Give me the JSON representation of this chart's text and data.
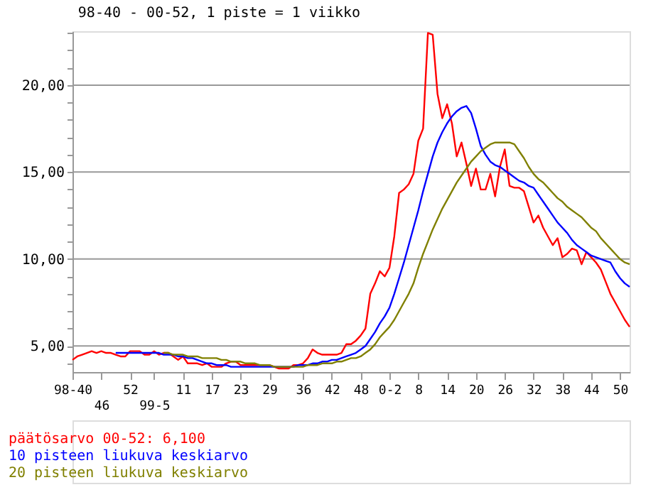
{
  "chart_data": {
    "type": "line",
    "title": "98-40 - 00-52, 1 piste = 1 viikko",
    "categories": [
      "98-40",
      null,
      null,
      null,
      null,
      null,
      "46",
      null,
      null,
      null,
      null,
      null,
      "52",
      null,
      null,
      null,
      null,
      "99-5",
      null,
      null,
      null,
      null,
      null,
      "11",
      null,
      null,
      null,
      null,
      null,
      "17",
      null,
      null,
      null,
      null,
      null,
      "23",
      null,
      null,
      null,
      null,
      null,
      "29",
      null,
      null,
      null,
      null,
      null,
      null,
      "36",
      null,
      null,
      null,
      null,
      null,
      "42",
      null,
      null,
      null,
      null,
      null,
      "48",
      null,
      null,
      null,
      null,
      null,
      "0-2",
      null,
      null,
      null,
      null,
      null,
      "8",
      null,
      null,
      null,
      null,
      null,
      "14",
      null,
      null,
      null,
      null,
      null,
      "20",
      null,
      null,
      null,
      null,
      null,
      "26",
      null,
      null,
      null,
      null,
      null,
      "32",
      null,
      null,
      null,
      null,
      null,
      "38",
      null,
      null,
      null,
      null,
      null,
      "44",
      null,
      null,
      null,
      null,
      null,
      "50",
      null,
      null
    ],
    "ylim": [
      3.5,
      23.1
    ],
    "yticks": [
      {
        "value": 4,
        "label": null
      },
      {
        "value": 5,
        "label": "5,00"
      },
      {
        "value": 6,
        "label": null
      },
      {
        "value": 7,
        "label": null
      },
      {
        "value": 8,
        "label": null
      },
      {
        "value": 9,
        "label": null
      },
      {
        "value": 10,
        "label": "10,00"
      },
      {
        "value": 11,
        "label": null
      },
      {
        "value": 12,
        "label": null
      },
      {
        "value": 13,
        "label": null
      },
      {
        "value": 14,
        "label": null
      },
      {
        "value": 15,
        "label": "15,00"
      },
      {
        "value": 16,
        "label": null
      },
      {
        "value": 17,
        "label": null
      },
      {
        "value": 18,
        "label": null
      },
      {
        "value": 19,
        "label": null
      },
      {
        "value": 20,
        "label": "20,00"
      },
      {
        "value": 21,
        "label": null
      },
      {
        "value": 22,
        "label": null
      },
      {
        "value": 23,
        "label": null
      }
    ],
    "grid": "y",
    "legend": "bottom left",
    "marker": "none",
    "line_style": "solid",
    "series": [
      {
        "name": "päätösarvo 00-52:    6,100",
        "color": "#ff0000",
        "values": [
          4.2,
          4.4,
          4.5,
          4.6,
          4.7,
          4.6,
          4.7,
          4.6,
          4.6,
          4.5,
          4.4,
          4.4,
          4.7,
          4.7,
          4.7,
          4.5,
          4.5,
          4.7,
          4.5,
          4.6,
          4.6,
          4.4,
          4.2,
          4.4,
          4.0,
          4.0,
          4.0,
          3.9,
          4.0,
          3.8,
          3.8,
          3.8,
          4.0,
          4.1,
          4.1,
          3.9,
          3.9,
          3.9,
          3.9,
          3.9,
          3.9,
          3.9,
          3.8,
          3.7,
          3.7,
          3.7,
          3.9,
          3.9,
          4.0,
          4.3,
          4.8,
          4.6,
          4.5,
          4.5,
          4.5,
          4.5,
          4.6,
          5.1,
          5.1,
          5.3,
          5.6,
          6.0,
          8.0,
          8.6,
          9.3,
          9.0,
          9.5,
          11.3,
          13.8,
          14.0,
          14.3,
          14.9,
          16.8,
          17.5,
          23.0,
          22.9,
          19.5,
          18.1,
          18.9,
          17.8,
          15.9,
          16.7,
          15.5,
          14.2,
          15.2,
          14.0,
          14.0,
          14.9,
          13.6,
          15.3,
          16.3,
          14.2,
          14.1,
          14.1,
          13.9,
          13.0,
          12.1,
          12.5,
          11.8,
          11.3,
          10.8,
          11.2,
          10.1,
          10.3,
          10.6,
          10.5,
          9.7,
          10.4,
          10.1,
          9.8,
          9.4,
          8.7,
          8.0,
          7.5,
          7.0,
          6.5,
          6.1
        ]
      },
      {
        "name": "10 pisteen liukuva keskiarvo",
        "color": "#0000ff",
        "values": [
          null,
          null,
          null,
          null,
          null,
          null,
          null,
          null,
          null,
          4.6,
          4.6,
          4.6,
          4.6,
          4.6,
          4.6,
          4.6,
          4.6,
          4.6,
          4.6,
          4.5,
          4.5,
          4.5,
          4.4,
          4.4,
          4.3,
          4.3,
          4.2,
          4.1,
          4.0,
          4.0,
          3.9,
          3.9,
          3.9,
          3.8,
          3.8,
          3.8,
          3.8,
          3.8,
          3.8,
          3.8,
          3.8,
          3.8,
          3.8,
          3.8,
          3.8,
          3.8,
          3.8,
          3.9,
          3.9,
          3.9,
          4.0,
          4.0,
          4.1,
          4.1,
          4.2,
          4.2,
          4.3,
          4.4,
          4.5,
          4.6,
          4.8,
          5.0,
          5.4,
          5.8,
          6.3,
          6.7,
          7.2,
          8.0,
          8.9,
          9.8,
          10.8,
          11.8,
          12.8,
          13.9,
          14.9,
          15.9,
          16.7,
          17.3,
          17.8,
          18.2,
          18.5,
          18.7,
          18.8,
          18.4,
          17.5,
          16.5,
          16.0,
          15.6,
          15.4,
          15.3,
          15.1,
          14.9,
          14.7,
          14.5,
          14.4,
          14.2,
          14.1,
          13.7,
          13.3,
          12.9,
          12.5,
          12.1,
          11.8,
          11.5,
          11.1,
          10.8,
          10.6,
          10.4,
          10.2,
          10.1,
          10.0,
          9.9,
          9.8,
          9.3,
          8.9,
          8.6,
          8.4
        ]
      },
      {
        "name": "20 pisteen liukuva keskiarvo",
        "color": "#808000",
        "values": [
          null,
          null,
          null,
          null,
          null,
          null,
          null,
          null,
          null,
          null,
          null,
          null,
          null,
          null,
          null,
          null,
          null,
          null,
          null,
          4.6,
          4.6,
          4.5,
          4.5,
          4.5,
          4.4,
          4.4,
          4.4,
          4.3,
          4.3,
          4.3,
          4.3,
          4.2,
          4.2,
          4.1,
          4.1,
          4.1,
          4.0,
          4.0,
          4.0,
          3.9,
          3.9,
          3.9,
          3.8,
          3.8,
          3.8,
          3.8,
          3.8,
          3.8,
          3.8,
          3.9,
          3.9,
          3.9,
          4.0,
          4.0,
          4.0,
          4.1,
          4.1,
          4.2,
          4.3,
          4.3,
          4.4,
          4.6,
          4.8,
          5.1,
          5.5,
          5.8,
          6.1,
          6.5,
          7.0,
          7.5,
          8.0,
          8.6,
          9.5,
          10.3,
          11.0,
          11.7,
          12.3,
          12.9,
          13.4,
          13.9,
          14.4,
          14.8,
          15.2,
          15.6,
          15.9,
          16.2,
          16.4,
          16.6,
          16.7,
          16.7,
          16.7,
          16.7,
          16.6,
          16.2,
          15.8,
          15.3,
          14.9,
          14.6,
          14.4,
          14.1,
          13.8,
          13.5,
          13.3,
          13.0,
          12.8,
          12.6,
          12.4,
          12.1,
          11.8,
          11.6,
          11.2,
          10.9,
          10.6,
          10.3,
          10.0,
          9.8,
          9.7
        ]
      }
    ]
  }
}
